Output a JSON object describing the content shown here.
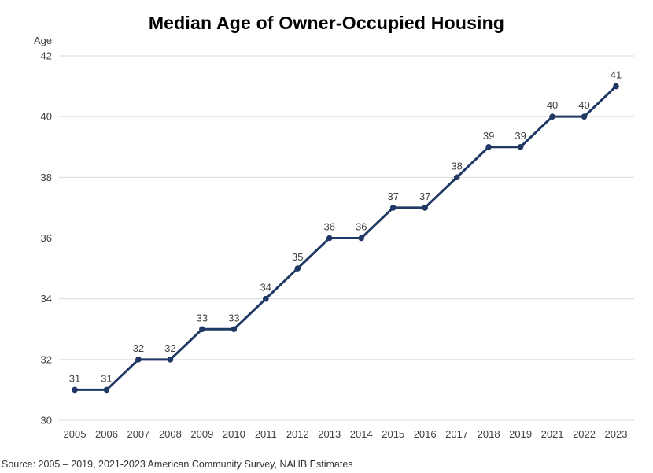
{
  "page": {
    "source_note": "Source: 2005 – 2019, 2021-2023 American Community Survey, NAHB Estimates"
  },
  "chart_data": {
    "type": "line",
    "title": "Median Age of Owner-Occupied Housing",
    "ylabel": "Age",
    "xlabel": "",
    "categories": [
      "2005",
      "2006",
      "2007",
      "2008",
      "2009",
      "2010",
      "2011",
      "2012",
      "2013",
      "2014",
      "2015",
      "2016",
      "2017",
      "2018",
      "2019",
      "2021",
      "2022",
      "2023"
    ],
    "values": [
      31,
      31,
      32,
      32,
      33,
      33,
      34,
      35,
      36,
      36,
      37,
      37,
      38,
      39,
      39,
      40,
      40,
      41
    ],
    "ylim": [
      30,
      42
    ],
    "ytick_step": 2,
    "grid": true,
    "legend_position": "none",
    "data_labels": true,
    "colors": {
      "line": "#1F3864",
      "marker": "#1F3864",
      "gridline": "#D9D9D9",
      "tick_label": "#404040",
      "data_label": "#404040"
    }
  }
}
